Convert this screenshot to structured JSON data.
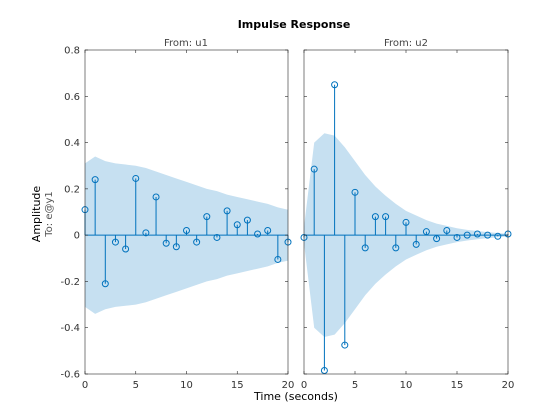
{
  "chart_data": {
    "type": "stem",
    "title": "Impulse Response",
    "xlabel": "Time (seconds)",
    "ylabel": "Amplitude",
    "output_label": "To: e@y1",
    "xlim": [
      0,
      20
    ],
    "ylim": [
      -0.6,
      0.8
    ],
    "xticks": [
      0,
      5,
      10,
      15,
      20
    ],
    "yticks": [
      -0.6,
      -0.4,
      -0.2,
      0,
      0.2,
      0.4,
      0.6,
      0.8
    ],
    "colors": {
      "stem": "#0072bd",
      "band": "#c6e0f1"
    },
    "panels": [
      {
        "input_label": "From: u1",
        "x": [
          0,
          1,
          2,
          3,
          4,
          5,
          6,
          7,
          8,
          9,
          10,
          11,
          12,
          13,
          14,
          15,
          16,
          17,
          18,
          19,
          20
        ],
        "y": [
          0.11,
          0.24,
          -0.21,
          -0.03,
          -0.06,
          0.245,
          0.01,
          0.165,
          -0.035,
          -0.05,
          0.02,
          -0.03,
          0.08,
          -0.01,
          0.105,
          0.045,
          0.065,
          0.005,
          0.02,
          -0.105,
          -0.03
        ],
        "band_upper": [
          0.31,
          0.34,
          0.32,
          0.31,
          0.305,
          0.3,
          0.29,
          0.275,
          0.26,
          0.245,
          0.23,
          0.215,
          0.2,
          0.19,
          0.175,
          0.165,
          0.155,
          0.145,
          0.135,
          0.12,
          0.11
        ],
        "band_lower": [
          -0.31,
          -0.34,
          -0.32,
          -0.31,
          -0.305,
          -0.3,
          -0.29,
          -0.275,
          -0.26,
          -0.245,
          -0.23,
          -0.215,
          -0.2,
          -0.19,
          -0.175,
          -0.165,
          -0.155,
          -0.145,
          -0.135,
          -0.12,
          -0.11
        ]
      },
      {
        "input_label": "From: u2",
        "x": [
          0,
          1,
          2,
          3,
          4,
          5,
          6,
          7,
          8,
          9,
          10,
          11,
          12,
          13,
          14,
          15,
          16,
          17,
          18,
          19,
          20
        ],
        "y": [
          -0.01,
          0.285,
          -0.585,
          0.65,
          -0.475,
          0.185,
          -0.055,
          0.08,
          0.08,
          -0.055,
          0.055,
          -0.04,
          0.015,
          -0.015,
          0.02,
          -0.01,
          0.0,
          0.005,
          0.0,
          -0.005,
          0.005
        ],
        "band_upper": [
          0.035,
          0.4,
          0.44,
          0.43,
          0.38,
          0.32,
          0.26,
          0.21,
          0.17,
          0.135,
          0.105,
          0.085,
          0.065,
          0.05,
          0.04,
          0.03,
          0.023,
          0.018,
          0.013,
          0.009,
          0.006
        ],
        "band_lower": [
          -0.035,
          -0.4,
          -0.44,
          -0.43,
          -0.38,
          -0.32,
          -0.26,
          -0.21,
          -0.17,
          -0.135,
          -0.105,
          -0.085,
          -0.065,
          -0.05,
          -0.04,
          -0.03,
          -0.023,
          -0.018,
          -0.013,
          -0.009,
          -0.006
        ]
      }
    ]
  }
}
